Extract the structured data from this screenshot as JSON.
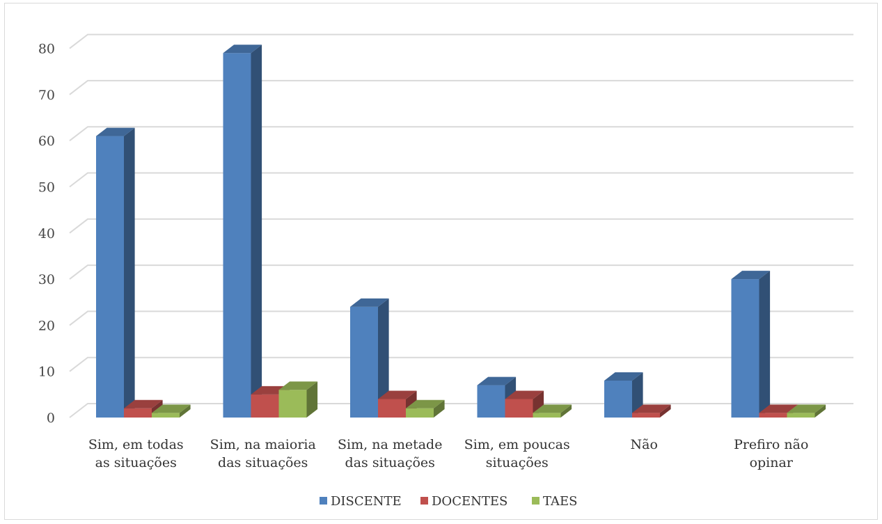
{
  "chart_data": {
    "type": "bar",
    "style": "3d-clustered-column",
    "categories": [
      [
        "Sim, em todas",
        "as situações"
      ],
      [
        "Sim, na maioria",
        "das situações"
      ],
      [
        "Sim, na metade",
        "das situações"
      ],
      [
        "Sim, em poucas",
        "situações"
      ],
      [
        "Não"
      ],
      [
        "Prefiro não",
        "opinar"
      ]
    ],
    "series": [
      {
        "name": "DISCENTE",
        "values": [
          61,
          79,
          24,
          7,
          8,
          30
        ],
        "color": "#4f81bd"
      },
      {
        "name": "DOCENTES",
        "values": [
          2,
          5,
          4,
          4,
          1,
          1
        ],
        "color": "#c0504d"
      },
      {
        "name": "TAES",
        "values": [
          1,
          6,
          2,
          1,
          0,
          1
        ],
        "color": "#9bbb59"
      }
    ],
    "yticks": [
      0,
      10,
      20,
      30,
      40,
      50,
      60,
      70,
      80
    ],
    "ylim": [
      0,
      80
    ],
    "grid": true,
    "legend": "bottom"
  }
}
